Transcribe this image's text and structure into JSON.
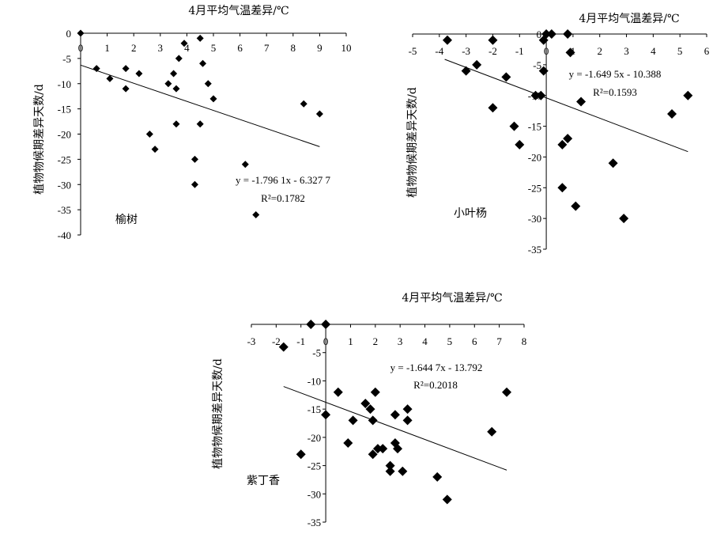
{
  "chart_data": [
    {
      "id": "elm",
      "type": "scatter",
      "species": "榆树",
      "xlabel": "4月平均气温差异/℃",
      "ylabel": "植物物候期差异天数/d",
      "xlim": [
        0,
        10
      ],
      "ylim": [
        -40,
        0
      ],
      "xticks": [
        0,
        1,
        2,
        3,
        4,
        5,
        6,
        7,
        8,
        9,
        10
      ],
      "yticks": [
        0,
        -5,
        -10,
        -15,
        -20,
        -25,
        -30,
        -35,
        -40
      ],
      "xtick_labels": [
        "0",
        "1",
        "2",
        "3",
        "4",
        "5",
        "6",
        "7",
        "8",
        "9",
        "10"
      ],
      "ytick_labels": [
        "0",
        "-5",
        "-10",
        "-15",
        "-20",
        "-25",
        "-30",
        "-35",
        "-40"
      ],
      "equation": "y = -1.796 1x - 6.327 7",
      "r2": "R²=0.1782",
      "trend": {
        "slope": -1.7961,
        "intercept": -6.3277,
        "x_range": [
          0,
          9
        ]
      },
      "points": [
        [
          0,
          0
        ],
        [
          0.6,
          -7
        ],
        [
          1.1,
          -9
        ],
        [
          1.7,
          -7
        ],
        [
          1.7,
          -11
        ],
        [
          2.2,
          -8
        ],
        [
          2.6,
          -20
        ],
        [
          2.8,
          -23
        ],
        [
          3.3,
          -10
        ],
        [
          3.5,
          -8
        ],
        [
          3.6,
          -11
        ],
        [
          3.6,
          -18
        ],
        [
          3.7,
          -5
        ],
        [
          3.9,
          -2
        ],
        [
          4.3,
          -25
        ],
        [
          4.3,
          -30
        ],
        [
          4.5,
          -1
        ],
        [
          4.5,
          -18
        ],
        [
          4.6,
          -6
        ],
        [
          4.8,
          -10
        ],
        [
          5.0,
          -13
        ],
        [
          6.2,
          -26
        ],
        [
          6.6,
          -36
        ],
        [
          8.4,
          -14
        ],
        [
          9.0,
          -16
        ]
      ]
    },
    {
      "id": "poplar",
      "type": "scatter",
      "species": "小叶杨",
      "xlabel": "4月平均气温差异/℃",
      "ylabel": "植物物候期差异天数/d",
      "xlim": [
        -5,
        6
      ],
      "ylim": [
        -35,
        0
      ],
      "xticks": [
        -5,
        -4,
        -3,
        -2,
        -1,
        0,
        1,
        2,
        3,
        4,
        5,
        6
      ],
      "yticks": [
        0,
        -5,
        -10,
        -15,
        -20,
        -25,
        -30,
        -35
      ],
      "xtick_labels": [
        "-5",
        "-4",
        "-3",
        "-2",
        "-1",
        "0",
        "1",
        "2",
        "3",
        "4",
        "5",
        "6"
      ],
      "ytick_labels": [
        "0",
        "-5",
        "-10",
        "-15",
        "-20",
        "-25",
        "-30",
        "-35"
      ],
      "equation": "y = -1.649 5x - 10.388",
      "r2": "R²=0.1593",
      "trend": {
        "slope": -1.6495,
        "intercept": -10.388,
        "x_range": [
          -3.8,
          5.3
        ]
      },
      "points": [
        [
          -3.7,
          -1
        ],
        [
          -3.0,
          -6
        ],
        [
          -2.6,
          -5
        ],
        [
          -2.0,
          -1
        ],
        [
          -2.0,
          -12
        ],
        [
          -1.5,
          -7
        ],
        [
          -1.2,
          -15
        ],
        [
          -1.0,
          -18
        ],
        [
          -0.4,
          -10
        ],
        [
          -0.2,
          -10
        ],
        [
          -0.1,
          -6
        ],
        [
          -0.1,
          -1
        ],
        [
          0.0,
          0
        ],
        [
          0.2,
          0
        ],
        [
          0.6,
          -18
        ],
        [
          0.6,
          -25
        ],
        [
          0.8,
          -17
        ],
        [
          0.8,
          0
        ],
        [
          0.9,
          -3
        ],
        [
          1.1,
          -28
        ],
        [
          1.3,
          -11
        ],
        [
          2.5,
          -21
        ],
        [
          2.9,
          -30
        ],
        [
          4.7,
          -13
        ],
        [
          5.3,
          -10
        ]
      ]
    },
    {
      "id": "lilac",
      "type": "scatter",
      "species": "紫丁香",
      "xlabel": "4月平均气温差异/℃",
      "ylabel": "植物物候期差异天数/d",
      "xlim": [
        -3,
        8
      ],
      "ylim": [
        -35,
        0
      ],
      "xticks": [
        -3,
        -2,
        -1,
        0,
        1,
        2,
        3,
        4,
        5,
        6,
        7,
        8
      ],
      "yticks": [
        0,
        -5,
        -10,
        -15,
        -20,
        -25,
        -30,
        -35
      ],
      "xtick_labels": [
        "-3",
        "-2",
        "-1",
        "0",
        "1",
        "2",
        "3",
        "4",
        "5",
        "6",
        "7",
        "8"
      ],
      "ytick_labels": [
        "",
        "-5",
        "-10",
        "-15",
        "-20",
        "-25",
        "-30",
        "-35"
      ],
      "equation": "y = -1.644 7x - 13.792",
      "r2": "R²=0.2018",
      "trend": {
        "slope": -1.6447,
        "intercept": -13.792,
        "x_range": [
          -1.7,
          7.3
        ]
      },
      "points": [
        [
          -1.7,
          -4
        ],
        [
          -0.6,
          0
        ],
        [
          0.0,
          0
        ],
        [
          -1.0,
          -23
        ],
        [
          0.0,
          -16
        ],
        [
          0.5,
          -12
        ],
        [
          0.9,
          -21
        ],
        [
          1.1,
          -17
        ],
        [
          1.6,
          -14
        ],
        [
          1.8,
          -15
        ],
        [
          1.9,
          -17
        ],
        [
          1.9,
          -23
        ],
        [
          2.0,
          -12
        ],
        [
          2.1,
          -22
        ],
        [
          2.3,
          -22
        ],
        [
          2.6,
          -25
        ],
        [
          2.6,
          -26
        ],
        [
          2.8,
          -16
        ],
        [
          2.8,
          -21
        ],
        [
          2.9,
          -22
        ],
        [
          3.1,
          -26
        ],
        [
          3.3,
          -15
        ],
        [
          3.3,
          -17
        ],
        [
          4.5,
          -27
        ],
        [
          4.9,
          -31
        ],
        [
          6.7,
          -19
        ],
        [
          7.3,
          -12
        ]
      ]
    }
  ]
}
